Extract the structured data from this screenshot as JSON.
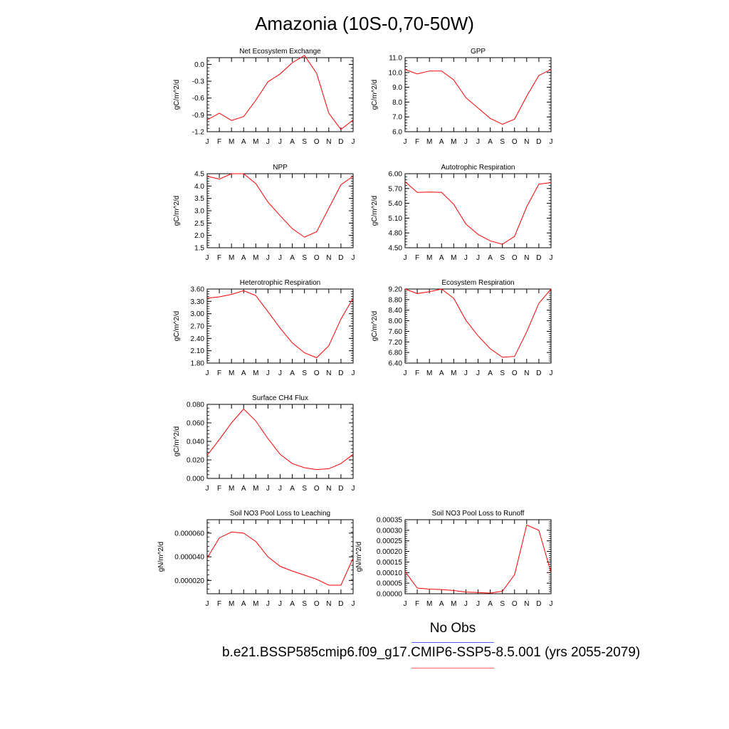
{
  "title": "Amazonia (10S-0,70-50W)",
  "legend": {
    "obs_label": "No Obs",
    "case_label": "b.e21.BSSP585cmip6.f09_g17.CMIP6-SSP5-8.5.001 (yrs 2055-2079)",
    "obs_color": "#5555ff",
    "case_color": "#ff0000"
  },
  "chart_data": [
    {
      "type": "line",
      "title": "Net Ecosystem Exchange",
      "ylabel": "gC/m^2/d",
      "categories": [
        "J",
        "F",
        "M",
        "A",
        "M",
        "J",
        "J",
        "A",
        "S",
        "O",
        "N",
        "D",
        "J"
      ],
      "ylim": [
        -1.2,
        0.12
      ],
      "yticks": [
        "0.0",
        "-0.3",
        "-0.6",
        "-0.9",
        "-1.2"
      ],
      "yticks_values": [
        0.0,
        -0.3,
        -0.6,
        -0.9,
        -1.2
      ],
      "series": [
        {
          "color": "#ff0000",
          "values": [
            -0.99,
            -0.87,
            -1.0,
            -0.93,
            -0.64,
            -0.31,
            -0.17,
            0.03,
            0.16,
            -0.16,
            -0.87,
            -1.16,
            -0.99
          ]
        }
      ]
    },
    {
      "type": "line",
      "title": "GPP",
      "ylabel": "gC/m^2/d",
      "categories": [
        "J",
        "F",
        "M",
        "A",
        "M",
        "J",
        "J",
        "A",
        "S",
        "O",
        "N",
        "D",
        "J"
      ],
      "ylim": [
        6.0,
        11.0
      ],
      "yticks": [
        "11.0",
        "10.0",
        "9.0",
        "8.0",
        "7.0",
        "6.0"
      ],
      "yticks_values": [
        11.0,
        10.0,
        9.0,
        8.0,
        7.0,
        6.0
      ],
      "series": [
        {
          "color": "#ff0000",
          "values": [
            10.2,
            9.9,
            10.1,
            10.1,
            9.5,
            8.3,
            7.6,
            6.9,
            6.5,
            6.85,
            8.4,
            9.8,
            10.2
          ]
        }
      ]
    },
    {
      "type": "line",
      "title": "NPP",
      "ylabel": "gC/m^2/d",
      "categories": [
        "J",
        "F",
        "M",
        "A",
        "M",
        "J",
        "J",
        "A",
        "S",
        "O",
        "N",
        "D",
        "J"
      ],
      "ylim": [
        1.5,
        4.5
      ],
      "yticks": [
        "4.5",
        "4.0",
        "3.5",
        "3.0",
        "2.5",
        "2.0",
        "1.5"
      ],
      "yticks_values": [
        4.5,
        4.0,
        3.5,
        3.0,
        2.5,
        2.0,
        1.5
      ],
      "series": [
        {
          "color": "#ff0000",
          "values": [
            4.4,
            4.28,
            4.5,
            4.5,
            4.1,
            3.35,
            2.8,
            2.27,
            1.93,
            2.15,
            3.1,
            4.05,
            4.4
          ]
        }
      ]
    },
    {
      "type": "line",
      "title": "Autotrophic Respiration",
      "ylabel": "gC/m^2/d",
      "categories": [
        "J",
        "F",
        "M",
        "A",
        "M",
        "J",
        "J",
        "A",
        "S",
        "O",
        "N",
        "D",
        "J"
      ],
      "ylim": [
        4.5,
        6.0
      ],
      "yticks": [
        "6.00",
        "5.70",
        "5.40",
        "5.10",
        "4.80",
        "4.50"
      ],
      "yticks_values": [
        6.0,
        5.7,
        5.4,
        5.1,
        4.8,
        4.5
      ],
      "series": [
        {
          "color": "#ff0000",
          "values": [
            5.84,
            5.62,
            5.63,
            5.62,
            5.38,
            4.98,
            4.77,
            4.64,
            4.57,
            4.73,
            5.33,
            5.79,
            5.82
          ]
        }
      ]
    },
    {
      "type": "line",
      "title": "Heterotrophic Respiration",
      "ylabel": "gC/m^2/d",
      "categories": [
        "J",
        "F",
        "M",
        "A",
        "M",
        "J",
        "J",
        "A",
        "S",
        "O",
        "N",
        "D",
        "J"
      ],
      "ylim": [
        1.8,
        3.6
      ],
      "yticks": [
        "3.60",
        "3.30",
        "3.00",
        "2.70",
        "2.40",
        "2.10",
        "1.80"
      ],
      "yticks_values": [
        3.6,
        3.3,
        3.0,
        2.7,
        2.4,
        2.1,
        1.8
      ],
      "series": [
        {
          "color": "#ff0000",
          "values": [
            3.38,
            3.41,
            3.47,
            3.56,
            3.44,
            3.05,
            2.65,
            2.29,
            2.05,
            1.93,
            2.22,
            2.87,
            3.38
          ]
        }
      ]
    },
    {
      "type": "line",
      "title": "Ecosystem Respiration",
      "ylabel": "gC/m^2/d",
      "categories": [
        "J",
        "F",
        "M",
        "A",
        "M",
        "J",
        "J",
        "A",
        "S",
        "O",
        "N",
        "D",
        "J"
      ],
      "ylim": [
        6.4,
        9.2
      ],
      "yticks": [
        "9.20",
        "8.80",
        "8.40",
        "8.00",
        "7.60",
        "7.20",
        "6.80",
        "6.40"
      ],
      "yticks_values": [
        9.2,
        8.8,
        8.4,
        8.0,
        7.6,
        7.2,
        6.8,
        6.4
      ],
      "series": [
        {
          "color": "#ff0000",
          "values": [
            9.2,
            9.03,
            9.1,
            9.2,
            8.85,
            8.02,
            7.43,
            6.94,
            6.62,
            6.65,
            7.58,
            8.66,
            9.2
          ]
        }
      ]
    },
    {
      "type": "line",
      "title": "Surface CH4 Flux",
      "ylabel": "gC/m^2/d",
      "categories": [
        "J",
        "F",
        "M",
        "A",
        "M",
        "J",
        "J",
        "A",
        "S",
        "O",
        "N",
        "D",
        "J"
      ],
      "ylim": [
        0.0,
        0.08
      ],
      "yticks": [
        "0.080",
        "0.060",
        "0.040",
        "0.020",
        "0.000"
      ],
      "yticks_values": [
        0.08,
        0.06,
        0.04,
        0.02,
        0.0
      ],
      "series": [
        {
          "color": "#ff0000",
          "values": [
            0.025,
            0.042,
            0.06,
            0.075,
            0.062,
            0.043,
            0.026,
            0.016,
            0.0115,
            0.0095,
            0.0105,
            0.016,
            0.026
          ]
        }
      ]
    },
    {
      "type": "line",
      "title": "Soil NO3 Pool Loss to Leaching",
      "ylabel": "gN/m^2/d",
      "categories": [
        "J",
        "F",
        "M",
        "A",
        "M",
        "J",
        "J",
        "A",
        "S",
        "O",
        "N",
        "D",
        "J"
      ],
      "ylim": [
        8.8e-06,
        7.14e-05
      ],
      "yticks": [
        "0.000060",
        "0.000040",
        "0.000020"
      ],
      "yticks_values": [
        6e-05,
        4e-05,
        2e-05
      ],
      "series": [
        {
          "color": "#ff0000",
          "values": [
            3.9e-05,
            5.6e-05,
            6.1e-05,
            6e-05,
            5.3e-05,
            4e-05,
            3.2e-05,
            2.8e-05,
            2.45e-05,
            2.1e-05,
            1.6e-05,
            1.6e-05,
            3.9e-05
          ]
        }
      ]
    },
    {
      "type": "line",
      "title": "Soil NO3 Pool Loss to Runoff",
      "ylabel": "gN/m^2/d",
      "categories": [
        "J",
        "F",
        "M",
        "A",
        "M",
        "J",
        "J",
        "A",
        "S",
        "O",
        "N",
        "D",
        "J"
      ],
      "ylim": [
        0.0,
        0.00035
      ],
      "yticks": [
        "0.00035",
        "0.00030",
        "0.00025",
        "0.00020",
        "0.00015",
        "0.00010",
        "0.00005",
        "0.00000"
      ],
      "yticks_values": [
        0.00035,
        0.0003,
        0.00025,
        0.0002,
        0.00015,
        0.0001,
        5e-05,
        0.0
      ],
      "series": [
        {
          "color": "#ff0000",
          "values": [
            0.000105,
            2.7e-05,
            2.2e-05,
            2e-05,
            1.5e-05,
            8e-06,
            6e-06,
            3e-06,
            1.2e-05,
            9e-05,
            0.000325,
            0.0003,
            0.0001
          ]
        }
      ]
    }
  ]
}
